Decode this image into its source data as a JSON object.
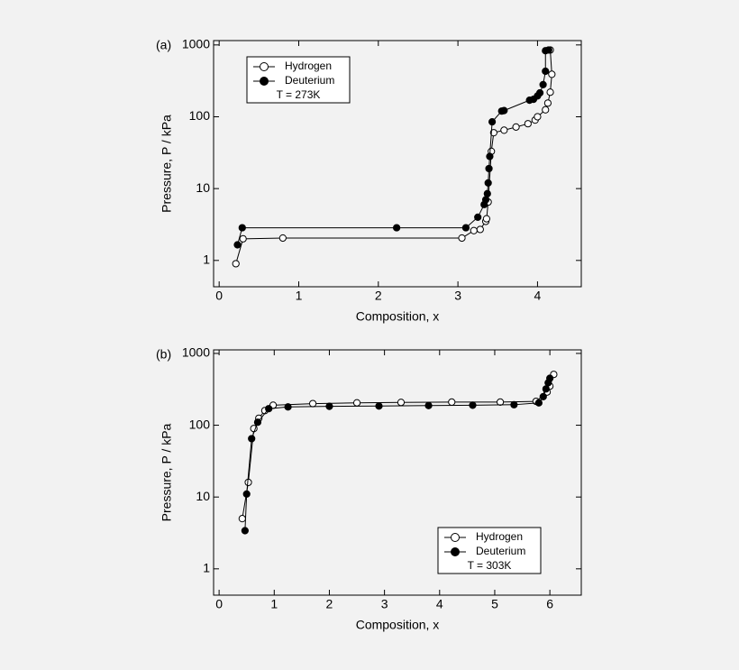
{
  "chart_data": [
    {
      "type": "line",
      "panel_label": "(a)",
      "xlabel": "Composition, x",
      "ylabel": "Pressure, P / kPa",
      "xlim": [
        -0.07,
        4.55
      ],
      "xticks": [
        0,
        1,
        2,
        3,
        4
      ],
      "ylim": [
        0.43,
        1150
      ],
      "yticks": [
        1,
        10,
        100,
        1000
      ],
      "yscale": "log",
      "legend_position": "upper left",
      "annotation": "T = 273K",
      "series": [
        {
          "name": "Hydrogen",
          "color": "#000000",
          "marker_fill": "#ffffff",
          "x": [
            0.21,
            0.3,
            0.8,
            3.05,
            3.2,
            3.28,
            3.35,
            3.36,
            3.38,
            3.42,
            3.45,
            3.58,
            3.73,
            3.88,
            3.97,
            4.0,
            4.1,
            4.13,
            4.16,
            4.18,
            4.16
          ],
          "values": [
            0.9,
            2.0,
            2.05,
            2.05,
            2.6,
            2.7,
            3.5,
            3.8,
            6.5,
            33,
            60,
            65,
            72,
            80,
            90,
            100,
            125,
            155,
            220,
            390,
            850
          ]
        },
        {
          "name": "Deuterium",
          "color": "#000000",
          "marker_fill": "#000000",
          "x": [
            0.23,
            0.29,
            2.23,
            3.1,
            3.25,
            3.33,
            3.35,
            3.37,
            3.38,
            3.39,
            3.4,
            3.43,
            3.55,
            3.58,
            3.9,
            3.95,
            4.0,
            4.03,
            4.07,
            4.1,
            4.1,
            4.14
          ],
          "values": [
            1.65,
            2.85,
            2.85,
            2.85,
            4.0,
            6.0,
            7,
            8.5,
            12,
            19,
            28,
            85,
            120,
            122,
            170,
            175,
            195,
            215,
            280,
            430,
            830,
            850
          ]
        }
      ]
    },
    {
      "type": "line",
      "panel_label": "(b)",
      "xlabel": "Composition, x",
      "ylabel": "Pressure, P / kPa",
      "xlim": [
        -0.1,
        6.57
      ],
      "xticks": [
        0,
        1,
        2,
        3,
        4,
        5,
        6
      ],
      "ylim": [
        0.43,
        1120
      ],
      "yticks": [
        1,
        10,
        100,
        1000
      ],
      "yscale": "log",
      "legend_position": "lower right",
      "annotation": "T = 303K",
      "series": [
        {
          "name": "Hydrogen",
          "color": "#000000",
          "marker_fill": "#ffffff",
          "x": [
            0.42,
            0.53,
            0.63,
            0.72,
            0.83,
            0.98,
            1.7,
            2.5,
            3.3,
            4.22,
            5.1,
            5.75,
            5.95,
            6.0,
            6.07
          ],
          "values": [
            5,
            16,
            90,
            125,
            160,
            190,
            200,
            205,
            208,
            210,
            210,
            215,
            290,
            350,
            510
          ]
        },
        {
          "name": "Deuterium",
          "color": "#000000",
          "marker_fill": "#000000",
          "x": [
            0.47,
            0.5,
            0.59,
            0.7,
            0.9,
            1.25,
            2.0,
            2.9,
            3.8,
            4.6,
            5.35,
            5.8,
            5.88,
            5.93,
            5.97,
            6.0
          ],
          "values": [
            3.4,
            11,
            65,
            110,
            170,
            180,
            183,
            185,
            188,
            190,
            193,
            205,
            250,
            320,
            390,
            450
          ]
        }
      ]
    }
  ]
}
